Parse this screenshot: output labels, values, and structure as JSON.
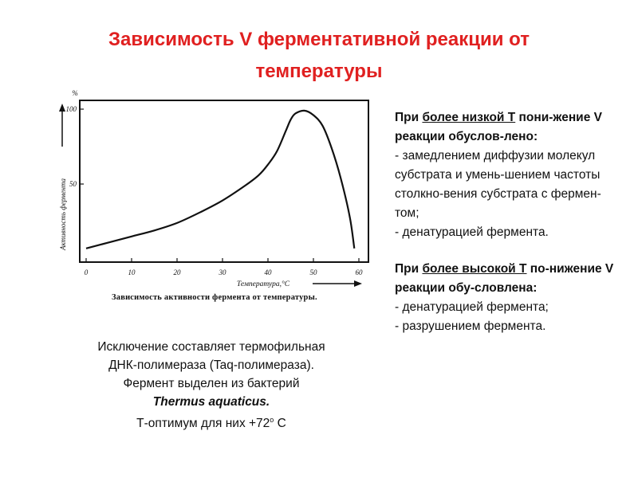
{
  "title_line1": "Зависимость V ферментативной реакции от",
  "title_line2": "температуры",
  "chart_data": {
    "type": "line",
    "x": [
      0,
      5,
      10,
      15,
      20,
      25,
      30,
      35,
      38,
      40,
      42,
      44,
      45,
      46,
      48,
      50,
      52,
      54,
      56,
      58,
      59
    ],
    "y": [
      7,
      11,
      15,
      19,
      24,
      31,
      39,
      49,
      56,
      63,
      72,
      86,
      93,
      97,
      99,
      96,
      89,
      74,
      54,
      28,
      7
    ],
    "ylabel": "Активность фермента",
    "xlabel": "Температура,°С",
    "y_unit": "%",
    "x_ticks": [
      "0",
      "10",
      "20",
      "30",
      "40",
      "50",
      "60"
    ],
    "y_ticks": [
      "50",
      "100"
    ],
    "caption": "Зависимость активности фермента от температуры.",
    "xlim": [
      0,
      60
    ],
    "ylim": [
      0,
      100
    ],
    "grid": false,
    "color": "#111111"
  },
  "exception": {
    "line1": "Исключение составляет термофильная",
    "line2": "ДНК-полимераза (Taq-полимераза).",
    "line3": "Фермент выделен из бактерий",
    "species": "Thermus aquaticus.",
    "line5_prefix": "Т-оптимум для них +72",
    "line5_sup": "о",
    "line5_suffix": " С"
  },
  "low_t": {
    "head_a": "При ",
    "head_u": "более низкой Т",
    "head_b": " пони-жение V реакции обуслов-лено:",
    "item1": "- замедлением диффузии молекул субстрата и умень-шением частоты столкно-вения субстрата с фермен-том;",
    "item2": "- денатурацией фермента."
  },
  "high_t": {
    "head_a": "При ",
    "head_u": "более высокой Т",
    "head_b": " по-нижение V реакции обу-словлена:",
    "item1": "- денатурацией фермента;",
    "item2": "- разрушением фермента."
  },
  "colors": {
    "title": "#e02020",
    "text": "#111111",
    "background": "#ffffff"
  }
}
